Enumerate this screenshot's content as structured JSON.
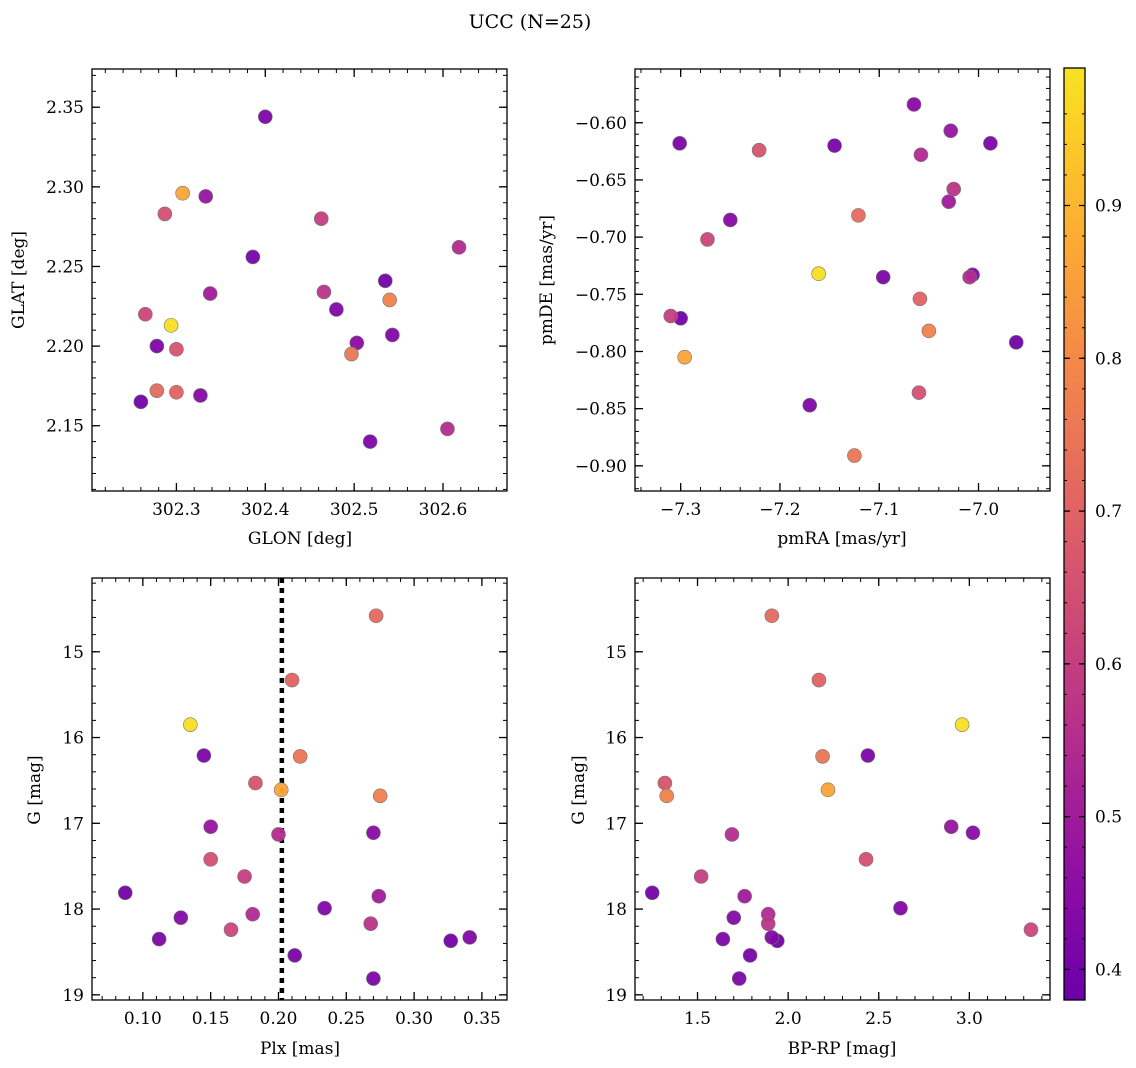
{
  "figure": {
    "title": "UCC (N=25)"
  },
  "colorbar": {
    "range": [
      0.38,
      0.99
    ],
    "ticks": [
      0.4,
      0.5,
      0.6,
      0.7,
      0.8,
      0.9
    ],
    "tick_labels": [
      "0.4",
      "0.5",
      "0.6",
      "0.7",
      "0.8",
      "0.9"
    ],
    "colormap": "plasma"
  },
  "stars": {
    "prob": [
      0.4,
      0.42,
      0.44,
      0.41,
      0.43,
      0.45,
      0.42,
      0.4,
      0.43,
      0.42,
      0.55,
      0.54,
      0.5,
      0.48,
      0.57,
      0.6,
      0.62,
      0.65,
      0.66,
      0.7,
      0.72,
      0.75,
      0.78,
      0.86,
      0.98
    ],
    "glon": [
      302.26,
      302.278,
      302.327,
      302.386,
      302.48,
      302.503,
      302.518,
      302.535,
      302.543,
      302.4,
      302.605,
      302.618,
      302.338,
      302.333,
      302.466,
      302.463,
      302.265,
      302.287,
      302.3,
      302.3,
      302.278,
      302.497,
      302.54,
      302.307,
      302.294
    ],
    "glat": [
      2.165,
      2.2,
      2.169,
      2.256,
      2.223,
      2.202,
      2.14,
      2.241,
      2.207,
      2.344,
      2.148,
      2.262,
      2.233,
      2.294,
      2.234,
      2.28,
      2.22,
      2.283,
      2.198,
      2.171,
      2.172,
      2.195,
      2.229,
      2.296,
      2.213
    ],
    "pmra": [
      -7.3,
      -7.301,
      -7.25,
      -7.145,
      -7.17,
      -7.065,
      -6.988,
      -6.962,
      -7.006,
      -7.096,
      -7.009,
      -7.058,
      -7.03,
      -7.028,
      -7.025,
      -7.31,
      -7.273,
      -7.06,
      -7.221,
      -7.059,
      -7.121,
      -7.125,
      -7.05,
      -7.296,
      -7.161
    ],
    "pmde": [
      -0.771,
      -0.618,
      -0.685,
      -0.62,
      -0.847,
      -0.584,
      -0.618,
      -0.792,
      -0.733,
      -0.735,
      -0.735,
      -0.628,
      -0.669,
      -0.607,
      -0.658,
      -0.769,
      -0.702,
      -0.836,
      -0.624,
      -0.754,
      -0.681,
      -0.891,
      -0.782,
      -0.805,
      -0.732
    ],
    "plx": [
      0.087,
      0.112,
      0.128,
      0.212,
      0.234,
      0.27,
      0.27,
      0.327,
      0.341,
      0.145,
      0.2,
      0.181,
      0.274,
      0.15,
      0.268,
      0.175,
      0.165,
      0.15,
      0.183,
      0.21,
      0.272,
      0.216,
      0.275,
      0.202,
      0.135
    ],
    "g": [
      17.81,
      18.35,
      18.1,
      18.54,
      17.99,
      17.11,
      18.81,
      18.37,
      18.33,
      16.21,
      17.13,
      18.06,
      17.85,
      17.04,
      18.17,
      17.62,
      18.24,
      17.42,
      16.53,
      15.33,
      14.58,
      16.22,
      16.68,
      16.61,
      15.85
    ],
    "bprp": [
      1.25,
      1.64,
      1.7,
      1.79,
      2.62,
      3.02,
      1.73,
      1.94,
      1.91,
      2.44,
      1.69,
      1.89,
      1.76,
      2.9,
      1.89,
      1.52,
      3.34,
      2.43,
      1.32,
      2.17,
      1.91,
      2.19,
      1.33,
      2.22,
      2.96
    ]
  },
  "chart_data": [
    {
      "type": "scatter",
      "x_key": "glon",
      "y_key": "glat",
      "xlabel": "GLON [deg]",
      "ylabel": "GLAT [deg]",
      "xlim": [
        302.205,
        302.672
      ],
      "ylim": [
        2.109,
        2.374
      ],
      "xticks": [
        302.3,
        302.4,
        302.5,
        302.6
      ],
      "xtick_labels": [
        "302.3",
        "302.4",
        "302.5",
        "302.6"
      ],
      "yticks": [
        2.15,
        2.2,
        2.25,
        2.3,
        2.35
      ],
      "ytick_labels": [
        "2.15",
        "2.20",
        "2.25",
        "2.30",
        "2.35"
      ],
      "x_minor": 0.02,
      "y_minor": 0.01,
      "invert_y": false,
      "vline": null
    },
    {
      "type": "scatter",
      "x_key": "pmra",
      "y_key": "pmde",
      "xlabel": "pmRA [mas/yr]",
      "ylabel": "pmDE [mas/yr]",
      "xlim": [
        -7.346,
        -6.928
      ],
      "ylim": [
        -0.922,
        -0.553
      ],
      "xticks": [
        -7.3,
        -7.2,
        -7.1,
        -7.0
      ],
      "xtick_labels": [
        "−7.3",
        "−7.2",
        "−7.1",
        "−7.0"
      ],
      "yticks": [
        -0.9,
        -0.85,
        -0.8,
        -0.75,
        -0.7,
        -0.65,
        -0.6
      ],
      "ytick_labels": [
        "−0.90",
        "−0.85",
        "−0.80",
        "−0.75",
        "−0.70",
        "−0.65",
        "−0.60"
      ],
      "x_minor": 0.02,
      "y_minor": 0.01,
      "invert_y": false,
      "vline": null
    },
    {
      "type": "scatter",
      "x_key": "plx",
      "y_key": "g",
      "xlabel": "Plx [mas]",
      "ylabel": "G [mag]",
      "xlim": [
        0.0625,
        0.3685
      ],
      "ylim": [
        19.06,
        14.14
      ],
      "xticks": [
        0.1,
        0.15,
        0.2,
        0.25,
        0.3,
        0.35
      ],
      "xtick_labels": [
        "0.10",
        "0.15",
        "0.20",
        "0.25",
        "0.30",
        "0.35"
      ],
      "yticks": [
        15,
        16,
        17,
        18,
        19
      ],
      "ytick_labels": [
        "15",
        "16",
        "17",
        "18",
        "19"
      ],
      "x_minor": 0.01,
      "y_minor": 0.2,
      "invert_y": true,
      "vline": 0.2025
    },
    {
      "type": "scatter",
      "x_key": "bprp",
      "y_key": "g",
      "xlabel": "BP-RP [mag]",
      "ylabel": "G [mag]",
      "xlim": [
        1.155,
        3.445
      ],
      "ylim": [
        19.06,
        14.14
      ],
      "xticks": [
        1.5,
        2.0,
        2.5,
        3.0
      ],
      "xtick_labels": [
        "1.5",
        "2.0",
        "2.5",
        "3.0"
      ],
      "yticks": [
        15,
        16,
        17,
        18,
        19
      ],
      "ytick_labels": [
        "15",
        "16",
        "17",
        "18",
        "19"
      ],
      "x_minor": 0.1,
      "y_minor": 0.2,
      "invert_y": true,
      "vline": null
    }
  ]
}
